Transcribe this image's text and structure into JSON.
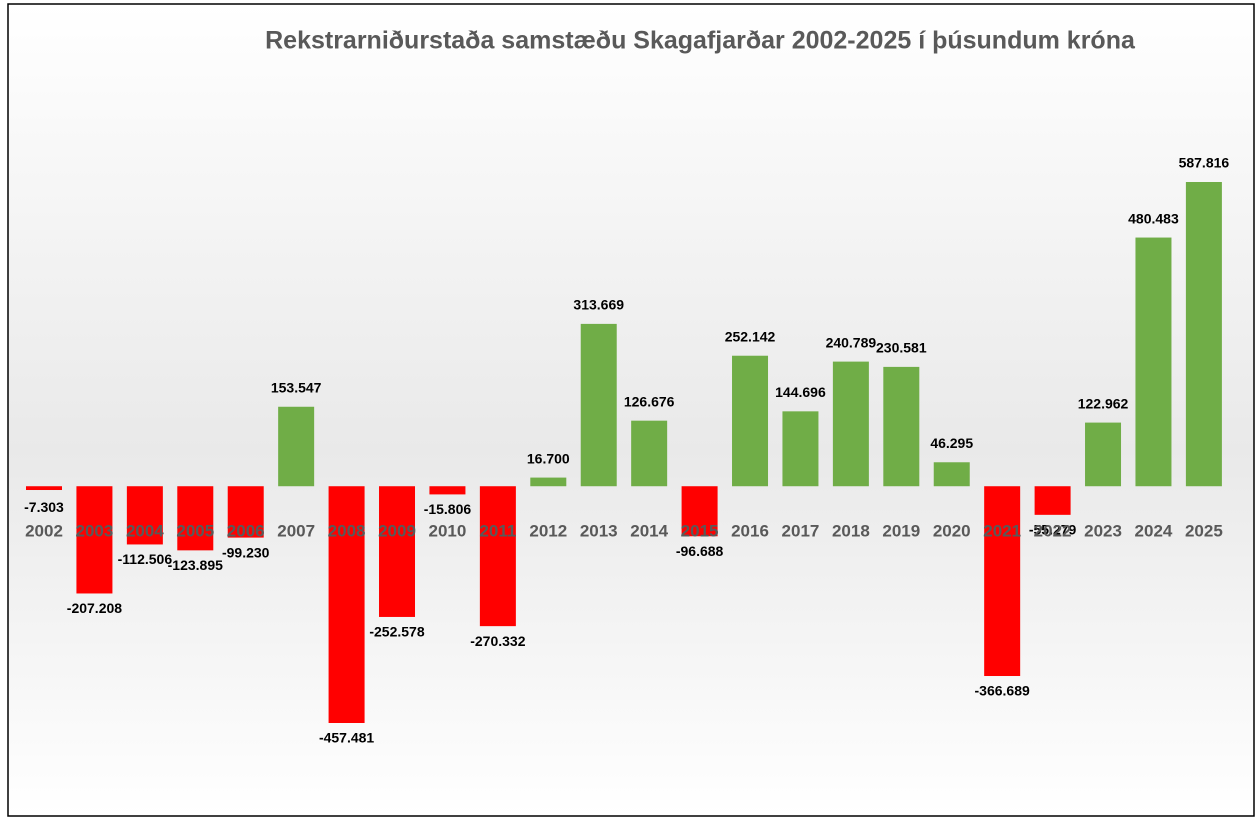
{
  "chart_data": {
    "type": "bar",
    "title": "Rekstrarniðurstaða samstæðu Skagafjarðar 2002-2025 í þúsundum króna",
    "categories": [
      "2002",
      "2003",
      "2004",
      "2005",
      "2006",
      "2007",
      "2008",
      "2009",
      "2010",
      "2011",
      "2012",
      "2013",
      "2014",
      "2015",
      "2016",
      "2017",
      "2018",
      "2019",
      "2020",
      "2021",
      "2022",
      "2023",
      "2024",
      "2025"
    ],
    "values": [
      -7303,
      -207208,
      -112506,
      -123895,
      -99230,
      153547,
      -457481,
      -252578,
      -15806,
      -270332,
      16700,
      313669,
      126676,
      -96688,
      252142,
      144696,
      240789,
      230581,
      46295,
      -366689,
      -55279,
      122962,
      480483,
      587816
    ],
    "value_labels": [
      "-7.303",
      "-207.208",
      "-112.506",
      "-123.895",
      "-99.230",
      "153.547",
      "-457.481",
      "-252.578",
      "-15.806",
      "-270.332",
      "16.700",
      "313.669",
      "126.676",
      "-96.688",
      "252.142",
      "144.696",
      "240.789",
      "230.581",
      "46.295",
      "-366.689",
      "-55.279",
      "122.962",
      "480.483",
      "587.816"
    ],
    "colors": {
      "positive": "#70ad47",
      "negative": "#ff0000"
    }
  }
}
